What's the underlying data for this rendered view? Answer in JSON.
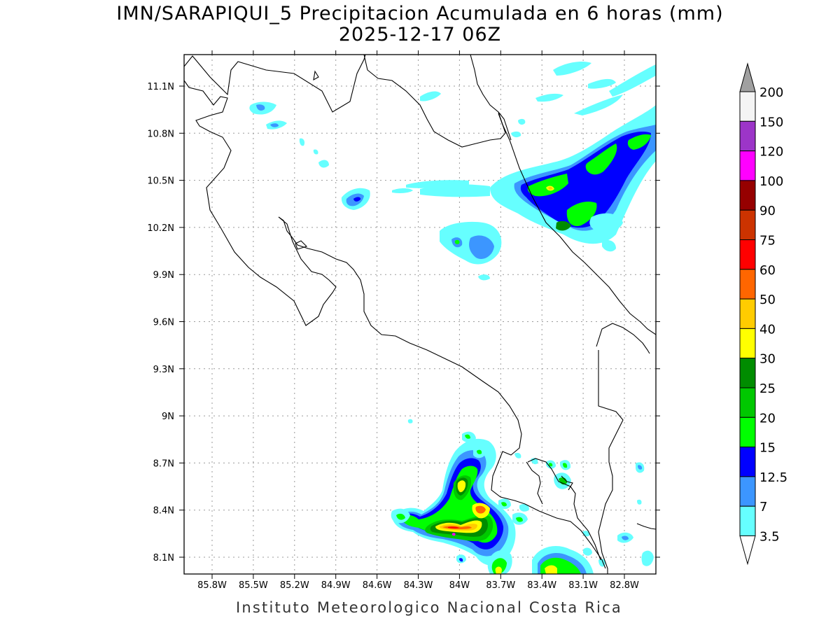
{
  "header": {
    "title_line1": "IMN/SARAPIQUI_5 Precipitacion Acumulada en 6 horas (mm)",
    "title_line2": "2025-12-17 06Z"
  },
  "map": {
    "lat_ticks": [
      "11.1N",
      "10.8N",
      "10.5N",
      "10.2N",
      "9.9N",
      "9.6N",
      "9.3N",
      "9N",
      "8.7N",
      "8.4N",
      "8.1N"
    ],
    "lon_ticks": [
      "85.8W",
      "85.5W",
      "85.2W",
      "84.9W",
      "84.6W",
      "84.3W",
      "84W",
      "83.7W",
      "83.4W",
      "83.1W",
      "82.8W"
    ],
    "grid": "dotted"
  },
  "colorbar": {
    "labels": [
      "200",
      "150",
      "120",
      "100",
      "90",
      "75",
      "60",
      "50",
      "40",
      "30",
      "25",
      "20",
      "15",
      "12.5",
      "7",
      "3.5"
    ],
    "colors": [
      "#a0a0a0",
      "#f4f4f4",
      "#9c35c8",
      "#ff00ff",
      "#960000",
      "#cc3300",
      "#ff0000",
      "#ff6600",
      "#ffcc00",
      "#ffff00",
      "#008c00",
      "#00c800",
      "#00ff00",
      "#0000ff",
      "#3c96ff",
      "#66ffff",
      "#ffffff"
    ]
  },
  "footer": {
    "credit": "Instituto Meteorologico Nacional Costa Rica"
  }
}
